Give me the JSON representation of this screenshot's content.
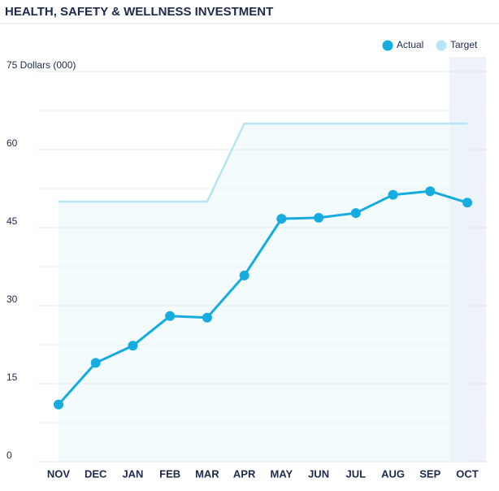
{
  "chart_data": {
    "type": "line",
    "title": "HEALTH, SAFETY & WELLNESS INVESTMENT",
    "categories": [
      "NOV",
      "DEC",
      "JAN",
      "FEB",
      "MAR",
      "APR",
      "MAY",
      "JUN",
      "JUL",
      "AUG",
      "SEP",
      "OCT"
    ],
    "series": [
      {
        "name": "Actual",
        "color": "#16ace0",
        "values": [
          11,
          19,
          22.3,
          28,
          27.7,
          35.8,
          46.7,
          46.9,
          47.8,
          51.3,
          52,
          49.8
        ]
      },
      {
        "name": "Target",
        "color": "#b6e4f2",
        "values": [
          50,
          50,
          50,
          50,
          50,
          65,
          65,
          65,
          65,
          65,
          65,
          65
        ]
      }
    ],
    "ylim": [
      0,
      75
    ],
    "yticks": [
      0,
      15,
      30,
      45,
      60,
      {
        "value": 75,
        "label": "75 Dollars (000)"
      }
    ],
    "minor_yticks": [
      7.5,
      22.5,
      37.5,
      52.5,
      67.5
    ],
    "grid": true,
    "legend": "top-right",
    "highlight_index": 11
  }
}
